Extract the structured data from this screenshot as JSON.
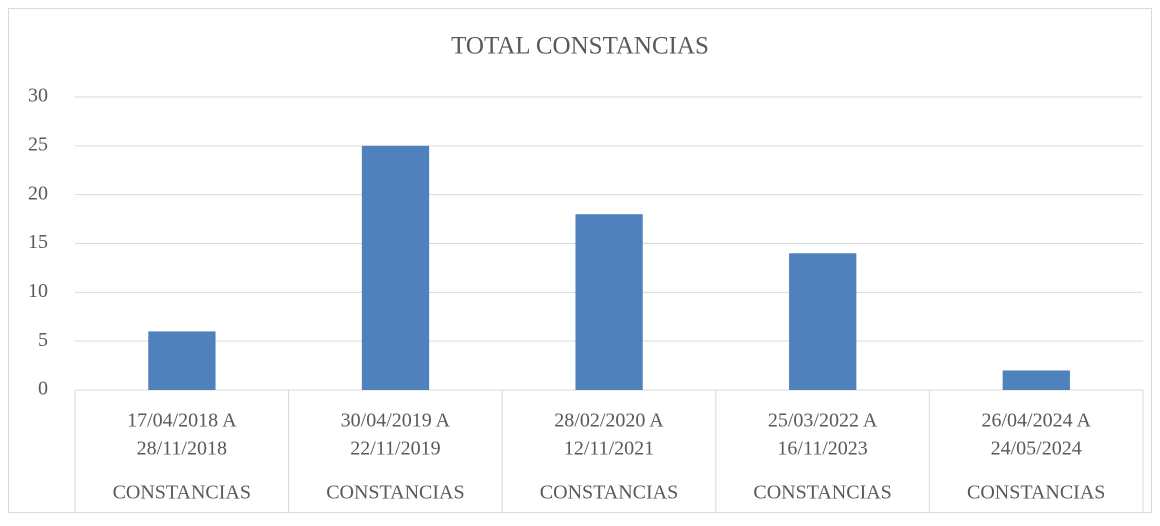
{
  "chart_data": {
    "type": "bar",
    "title": "TOTAL CONSTANCIAS",
    "categories": [
      [
        "17/04/2018  A",
        "28/11/2018"
      ],
      [
        "30/04/2019  A",
        "22/11/2019"
      ],
      [
        "28/02/2020 A",
        "12/11/2021"
      ],
      [
        "25/03/2022 A",
        "16/11/2023"
      ],
      [
        "26/04/2024 A",
        "24/05/2024"
      ]
    ],
    "group_labels": [
      "CONSTANCIAS",
      "CONSTANCIAS",
      "CONSTANCIAS",
      "CONSTANCIAS",
      "CONSTANCIAS"
    ],
    "values": [
      6,
      25,
      18,
      14,
      2
    ],
    "color": "#4f81bd",
    "ylim": [
      0,
      30
    ],
    "yticks": [
      0,
      5,
      10,
      15,
      20,
      25,
      30
    ],
    "grid": true
  }
}
